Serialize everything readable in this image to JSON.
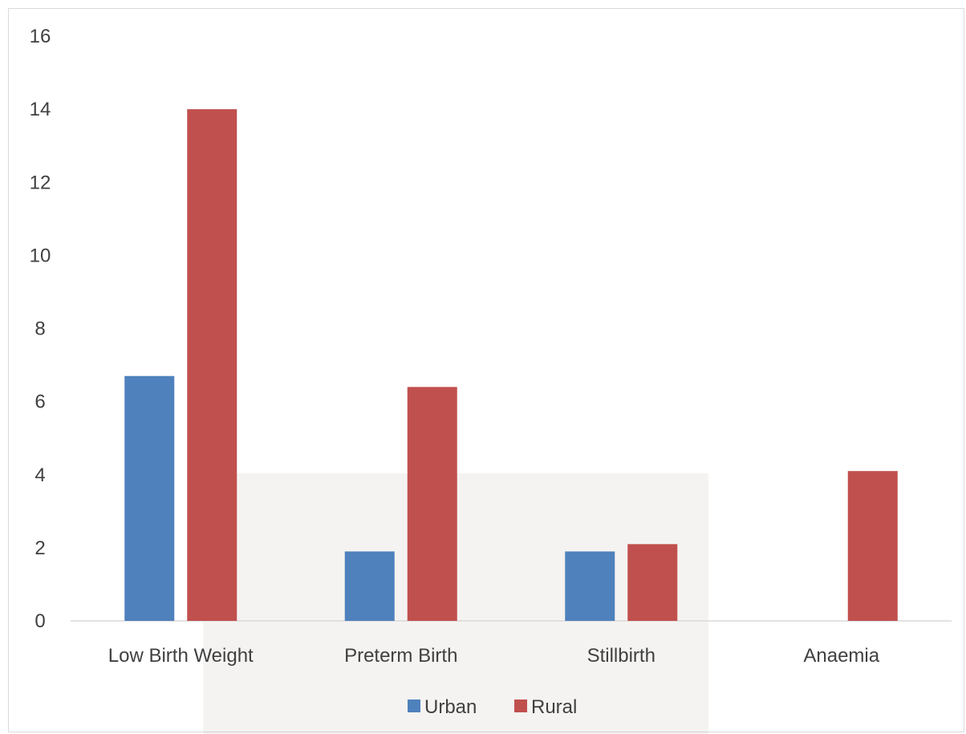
{
  "chart_data": {
    "type": "bar",
    "title": "",
    "xlabel": "",
    "ylabel": "",
    "categories": [
      "Low Birth Weight",
      "Preterm Birth",
      "Stillbirth",
      "Anaemia"
    ],
    "series": [
      {
        "name": "Urban",
        "values": [
          6.7,
          1.9,
          1.9,
          0
        ],
        "color": "#4f81bd"
      },
      {
        "name": "Rural",
        "values": [
          14,
          6.4,
          2.1,
          4.1
        ],
        "color": "#c0504d"
      }
    ],
    "ylim": [
      0,
      16
    ],
    "yticks": [
      0,
      2,
      4,
      6,
      8,
      10,
      12,
      14,
      16
    ],
    "grid": false,
    "legend_position": "bottom"
  }
}
